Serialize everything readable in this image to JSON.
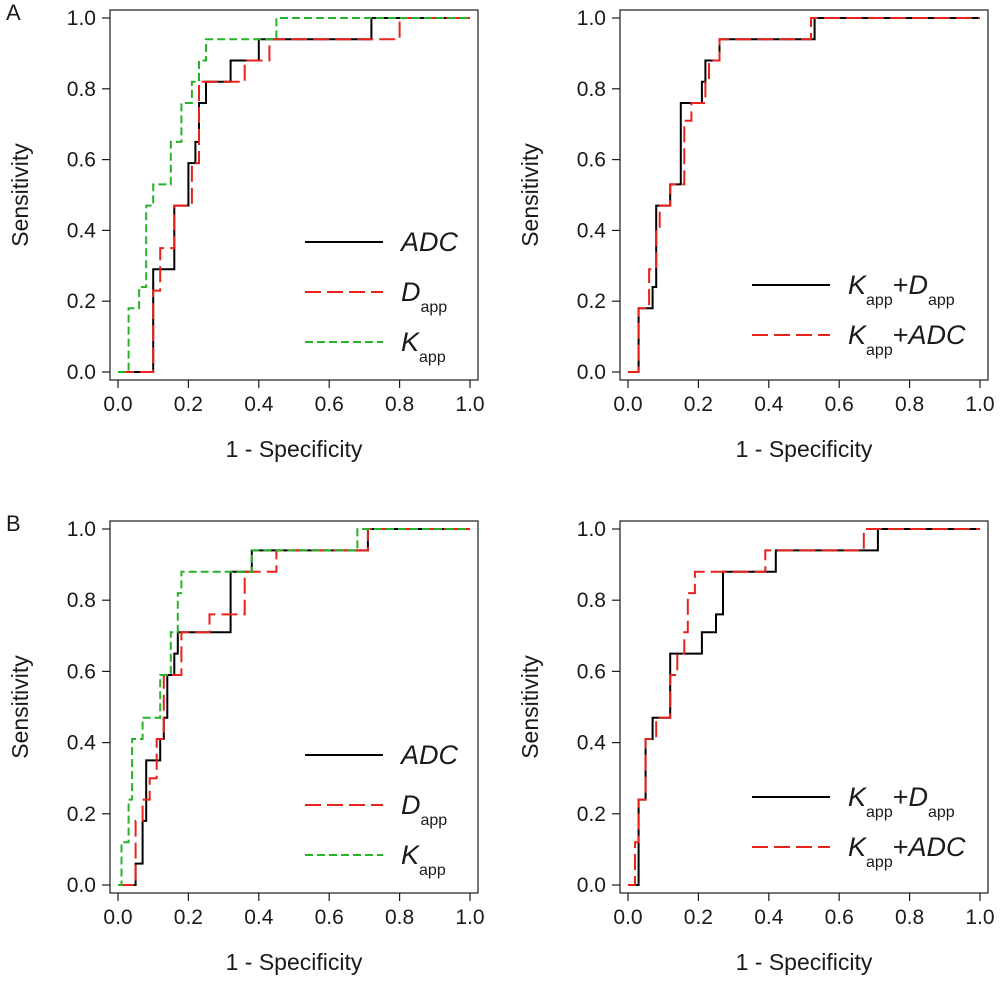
{
  "panel_letters": [
    "A",
    "B"
  ],
  "colors": {
    "ADC": "#000000",
    "Dapp": "#e8231c",
    "Kapp": "#29b32b",
    "axis": "#1a1a1a"
  },
  "chart_data": [
    {
      "type": "line",
      "panel": "A",
      "xlabel": "1 - Specificity",
      "ylabel": "Sensitivity",
      "xlim": [
        0,
        1
      ],
      "ylim": [
        0,
        1
      ],
      "xticks": [
        "0.0",
        "0.2",
        "0.4",
        "0.6",
        "0.8",
        "1.0"
      ],
      "yticks": [
        "0.0",
        "0.2",
        "0.4",
        "0.6",
        "0.8",
        "1.0"
      ],
      "grid": false,
      "legend_position": "bottom-right",
      "series": [
        {
          "name": "ADC",
          "name_main": "ADC",
          "name_sub": "",
          "name_suffix": "",
          "dash": "solid",
          "color": "#000000",
          "points": [
            [
              0,
              0
            ],
            [
              0.1,
              0
            ],
            [
              0.1,
              0.29
            ],
            [
              0.16,
              0.29
            ],
            [
              0.16,
              0.47
            ],
            [
              0.2,
              0.47
            ],
            [
              0.2,
              0.59
            ],
            [
              0.22,
              0.59
            ],
            [
              0.22,
              0.65
            ],
            [
              0.23,
              0.65
            ],
            [
              0.23,
              0.76
            ],
            [
              0.25,
              0.76
            ],
            [
              0.25,
              0.82
            ],
            [
              0.32,
              0.82
            ],
            [
              0.32,
              0.88
            ],
            [
              0.36,
              0.88
            ],
            [
              0.36,
              0.88
            ],
            [
              0.4,
              0.88
            ],
            [
              0.4,
              0.94
            ],
            [
              0.72,
              0.94
            ],
            [
              0.72,
              1
            ],
            [
              1,
              1
            ]
          ]
        },
        {
          "name": "Dapp",
          "name_main": "D",
          "name_sub": "app",
          "name_suffix": "",
          "dash": "long",
          "color": "#e8231c",
          "points": [
            [
              0,
              0
            ],
            [
              0.1,
              0
            ],
            [
              0.1,
              0.23
            ],
            [
              0.12,
              0.23
            ],
            [
              0.12,
              0.35
            ],
            [
              0.16,
              0.35
            ],
            [
              0.16,
              0.47
            ],
            [
              0.21,
              0.47
            ],
            [
              0.21,
              0.59
            ],
            [
              0.23,
              0.59
            ],
            [
              0.23,
              0.82
            ],
            [
              0.33,
              0.82
            ],
            [
              0.33,
              0.82
            ],
            [
              0.36,
              0.82
            ],
            [
              0.36,
              0.88
            ],
            [
              0.43,
              0.88
            ],
            [
              0.43,
              0.94
            ],
            [
              0.76,
              0.94
            ],
            [
              0.76,
              0.94
            ],
            [
              0.8,
              0.94
            ],
            [
              0.8,
              1
            ],
            [
              1,
              1
            ]
          ]
        },
        {
          "name": "Kapp",
          "name_main": "K",
          "name_sub": "app",
          "name_suffix": "",
          "dash": "short",
          "color": "#29b32b",
          "points": [
            [
              0,
              0
            ],
            [
              0.03,
              0
            ],
            [
              0.03,
              0.18
            ],
            [
              0.06,
              0.18
            ],
            [
              0.06,
              0.24
            ],
            [
              0.08,
              0.24
            ],
            [
              0.08,
              0.47
            ],
            [
              0.1,
              0.47
            ],
            [
              0.1,
              0.53
            ],
            [
              0.15,
              0.53
            ],
            [
              0.15,
              0.65
            ],
            [
              0.18,
              0.65
            ],
            [
              0.18,
              0.76
            ],
            [
              0.21,
              0.76
            ],
            [
              0.21,
              0.82
            ],
            [
              0.23,
              0.82
            ],
            [
              0.23,
              0.88
            ],
            [
              0.25,
              0.88
            ],
            [
              0.25,
              0.94
            ],
            [
              0.45,
              0.94
            ],
            [
              0.45,
              1
            ],
            [
              1,
              1
            ]
          ]
        }
      ]
    },
    {
      "type": "line",
      "panel": "A",
      "xlabel": "1 - Specificity",
      "ylabel": "Sensitivity",
      "xlim": [
        0,
        1
      ],
      "ylim": [
        0,
        1
      ],
      "xticks": [
        "0.0",
        "0.2",
        "0.4",
        "0.6",
        "0.8",
        "1.0"
      ],
      "yticks": [
        "0.0",
        "0.2",
        "0.4",
        "0.6",
        "0.8",
        "1.0"
      ],
      "grid": false,
      "legend_position": "bottom-right",
      "series": [
        {
          "name": "Kapp+Dapp",
          "name_main": "K",
          "name_sub": "app",
          "name_suffix": "+D",
          "name_sub2": "app",
          "dash": "solid",
          "color": "#000000",
          "points": [
            [
              0,
              0
            ],
            [
              0.03,
              0
            ],
            [
              0.03,
              0.18
            ],
            [
              0.07,
              0.18
            ],
            [
              0.07,
              0.24
            ],
            [
              0.08,
              0.24
            ],
            [
              0.08,
              0.47
            ],
            [
              0.12,
              0.47
            ],
            [
              0.12,
              0.53
            ],
            [
              0.15,
              0.53
            ],
            [
              0.15,
              0.76
            ],
            [
              0.19,
              0.76
            ],
            [
              0.19,
              0.76
            ],
            [
              0.21,
              0.76
            ],
            [
              0.21,
              0.82
            ],
            [
              0.22,
              0.82
            ],
            [
              0.22,
              0.88
            ],
            [
              0.26,
              0.88
            ],
            [
              0.26,
              0.94
            ],
            [
              0.53,
              0.94
            ],
            [
              0.53,
              1
            ],
            [
              1,
              1
            ]
          ]
        },
        {
          "name": "Kapp+ADC",
          "name_main": "K",
          "name_sub": "app",
          "name_suffix": "+ADC",
          "dash": "long",
          "color": "#e8231c",
          "points": [
            [
              0,
              0
            ],
            [
              0.03,
              0
            ],
            [
              0.03,
              0.18
            ],
            [
              0.06,
              0.18
            ],
            [
              0.06,
              0.29
            ],
            [
              0.08,
              0.29
            ],
            [
              0.08,
              0.41
            ],
            [
              0.09,
              0.41
            ],
            [
              0.09,
              0.47
            ],
            [
              0.12,
              0.47
            ],
            [
              0.12,
              0.53
            ],
            [
              0.16,
              0.53
            ],
            [
              0.16,
              0.71
            ],
            [
              0.18,
              0.71
            ],
            [
              0.18,
              0.76
            ],
            [
              0.22,
              0.76
            ],
            [
              0.22,
              0.82
            ],
            [
              0.23,
              0.82
            ],
            [
              0.23,
              0.88
            ],
            [
              0.26,
              0.88
            ],
            [
              0.26,
              0.94
            ],
            [
              0.52,
              0.94
            ],
            [
              0.52,
              1
            ],
            [
              1,
              1
            ]
          ]
        }
      ]
    },
    {
      "type": "line",
      "panel": "B",
      "xlabel": "1 - Specificity",
      "ylabel": "Sensitivity",
      "xlim": [
        0,
        1
      ],
      "ylim": [
        0,
        1
      ],
      "xticks": [
        "0.0",
        "0.2",
        "0.4",
        "0.6",
        "0.8",
        "1.0"
      ],
      "yticks": [
        "0.0",
        "0.2",
        "0.4",
        "0.6",
        "0.8",
        "1.0"
      ],
      "grid": false,
      "legend_position": "bottom-right",
      "series": [
        {
          "name": "ADC",
          "name_main": "ADC",
          "name_sub": "",
          "name_suffix": "",
          "dash": "solid",
          "color": "#000000",
          "points": [
            [
              0,
              0
            ],
            [
              0.05,
              0
            ],
            [
              0.05,
              0.06
            ],
            [
              0.07,
              0.06
            ],
            [
              0.07,
              0.18
            ],
            [
              0.08,
              0.18
            ],
            [
              0.08,
              0.35
            ],
            [
              0.12,
              0.35
            ],
            [
              0.12,
              0.41
            ],
            [
              0.13,
              0.41
            ],
            [
              0.13,
              0.47
            ],
            [
              0.14,
              0.47
            ],
            [
              0.14,
              0.59
            ],
            [
              0.16,
              0.59
            ],
            [
              0.16,
              0.65
            ],
            [
              0.17,
              0.65
            ],
            [
              0.17,
              0.71
            ],
            [
              0.23,
              0.71
            ],
            [
              0.23,
              0.71
            ],
            [
              0.32,
              0.71
            ],
            [
              0.32,
              0.88
            ],
            [
              0.38,
              0.88
            ],
            [
              0.38,
              0.94
            ],
            [
              0.71,
              0.94
            ],
            [
              0.71,
              1
            ],
            [
              1,
              1
            ]
          ]
        },
        {
          "name": "Dapp",
          "name_main": "D",
          "name_sub": "app",
          "name_suffix": "",
          "dash": "long",
          "color": "#e8231c",
          "points": [
            [
              0,
              0
            ],
            [
              0.05,
              0
            ],
            [
              0.05,
              0.18
            ],
            [
              0.07,
              0.18
            ],
            [
              0.07,
              0.24
            ],
            [
              0.09,
              0.24
            ],
            [
              0.09,
              0.3
            ],
            [
              0.11,
              0.3
            ],
            [
              0.11,
              0.41
            ],
            [
              0.13,
              0.41
            ],
            [
              0.13,
              0.59
            ],
            [
              0.18,
              0.59
            ],
            [
              0.18,
              0.71
            ],
            [
              0.26,
              0.71
            ],
            [
              0.26,
              0.76
            ],
            [
              0.36,
              0.76
            ],
            [
              0.36,
              0.88
            ],
            [
              0.45,
              0.88
            ],
            [
              0.45,
              0.94
            ],
            [
              0.71,
              0.94
            ],
            [
              0.71,
              1
            ],
            [
              1,
              1
            ]
          ]
        },
        {
          "name": "Kapp",
          "name_main": "K",
          "name_sub": "app",
          "name_suffix": "",
          "dash": "short",
          "color": "#29b32b",
          "points": [
            [
              0,
              0
            ],
            [
              0.01,
              0
            ],
            [
              0.01,
              0.12
            ],
            [
              0.03,
              0.12
            ],
            [
              0.03,
              0.24
            ],
            [
              0.04,
              0.24
            ],
            [
              0.04,
              0.41
            ],
            [
              0.07,
              0.41
            ],
            [
              0.07,
              0.47
            ],
            [
              0.12,
              0.47
            ],
            [
              0.12,
              0.59
            ],
            [
              0.15,
              0.59
            ],
            [
              0.15,
              0.71
            ],
            [
              0.17,
              0.71
            ],
            [
              0.17,
              0.82
            ],
            [
              0.18,
              0.82
            ],
            [
              0.18,
              0.88
            ],
            [
              0.33,
              0.88
            ],
            [
              0.33,
              0.88
            ],
            [
              0.38,
              0.88
            ],
            [
              0.38,
              0.94
            ],
            [
              0.68,
              0.94
            ],
            [
              0.68,
              1
            ],
            [
              1,
              1
            ]
          ]
        }
      ]
    },
    {
      "type": "line",
      "panel": "B",
      "xlabel": "1 - Specificity",
      "ylabel": "Sensitivity",
      "xlim": [
        0,
        1
      ],
      "ylim": [
        0,
        1
      ],
      "xticks": [
        "0.0",
        "0.2",
        "0.4",
        "0.6",
        "0.8",
        "1.0"
      ],
      "yticks": [
        "0.0",
        "0.2",
        "0.4",
        "0.6",
        "0.8",
        "1.0"
      ],
      "grid": false,
      "legend_position": "bottom-right",
      "series": [
        {
          "name": "Kapp+Dapp",
          "name_main": "K",
          "name_sub": "app",
          "name_suffix": "+D",
          "name_sub2": "app",
          "dash": "solid",
          "color": "#000000",
          "points": [
            [
              0,
              0
            ],
            [
              0.03,
              0
            ],
            [
              0.03,
              0.24
            ],
            [
              0.05,
              0.24
            ],
            [
              0.05,
              0.41
            ],
            [
              0.07,
              0.41
            ],
            [
              0.07,
              0.47
            ],
            [
              0.12,
              0.47
            ],
            [
              0.12,
              0.65
            ],
            [
              0.21,
              0.65
            ],
            [
              0.21,
              0.71
            ],
            [
              0.25,
              0.71
            ],
            [
              0.25,
              0.76
            ],
            [
              0.27,
              0.76
            ],
            [
              0.27,
              0.88
            ],
            [
              0.42,
              0.88
            ],
            [
              0.42,
              0.94
            ],
            [
              0.71,
              0.94
            ],
            [
              0.71,
              1
            ],
            [
              1,
              1
            ]
          ]
        },
        {
          "name": "Kapp+ADC",
          "name_main": "K",
          "name_sub": "app",
          "name_suffix": "+ADC",
          "dash": "long",
          "color": "#e8231c",
          "points": [
            [
              0,
              0
            ],
            [
              0.02,
              0
            ],
            [
              0.02,
              0.12
            ],
            [
              0.03,
              0.12
            ],
            [
              0.03,
              0.24
            ],
            [
              0.05,
              0.24
            ],
            [
              0.05,
              0.41
            ],
            [
              0.08,
              0.41
            ],
            [
              0.08,
              0.47
            ],
            [
              0.12,
              0.47
            ],
            [
              0.12,
              0.59
            ],
            [
              0.14,
              0.59
            ],
            [
              0.14,
              0.65
            ],
            [
              0.16,
              0.65
            ],
            [
              0.16,
              0.71
            ],
            [
              0.17,
              0.71
            ],
            [
              0.17,
              0.82
            ],
            [
              0.19,
              0.82
            ],
            [
              0.19,
              0.88
            ],
            [
              0.39,
              0.88
            ],
            [
              0.39,
              0.94
            ],
            [
              0.67,
              0.94
            ],
            [
              0.67,
              1
            ],
            [
              1,
              1
            ]
          ]
        }
      ]
    }
  ]
}
